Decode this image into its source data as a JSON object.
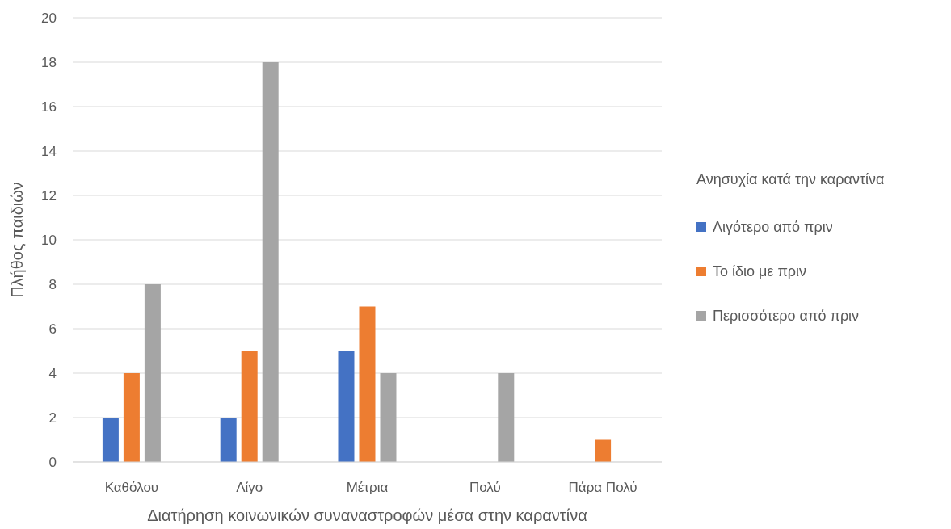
{
  "chart_data": {
    "type": "bar",
    "xlabel": "Διατήρηση κοινωνικών συναναστροφών μέσα στην καραντίνα",
    "ylabel": "Πλήθος παιδιών",
    "legend_title": "Ανησυχία κατά την καραντίνα",
    "categories": [
      "Καθόλου",
      "Λίγο",
      "Μέτρια",
      "Πολύ",
      "Πάρα Πολύ"
    ],
    "series": [
      {
        "name": "Λιγότερο από πριν",
        "color": "#4472c4",
        "values": [
          2,
          2,
          5,
          0,
          0
        ]
      },
      {
        "name": "Το ίδιο με πριν",
        "color": "#ed7d31",
        "values": [
          4,
          5,
          7,
          0,
          1
        ]
      },
      {
        "name": "Περισσότερο από πριν",
        "color": "#a5a5a5",
        "values": [
          8,
          18,
          4,
          4,
          0
        ]
      }
    ],
    "ylim": [
      0,
      20
    ],
    "yticks": [
      0,
      2,
      4,
      6,
      8,
      10,
      12,
      14,
      16,
      18,
      20
    ],
    "grid": "y",
    "legend": "right"
  }
}
